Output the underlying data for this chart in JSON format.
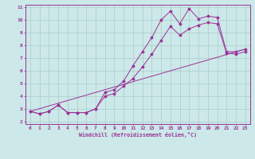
{
  "xlabel": "Windchill (Refroidissement éolien,°C)",
  "bg_color": "#cce8e8",
  "grid_color": "#aacccc",
  "line_color": "#993399",
  "xlim": [
    -0.5,
    23.5
  ],
  "ylim": [
    1.8,
    11.2
  ],
  "xticks": [
    0,
    1,
    2,
    3,
    4,
    5,
    6,
    7,
    8,
    9,
    10,
    11,
    12,
    13,
    14,
    15,
    16,
    17,
    18,
    19,
    20,
    21,
    22,
    23
  ],
  "yticks": [
    2,
    3,
    4,
    5,
    6,
    7,
    8,
    9,
    10,
    11
  ],
  "line1_x": [
    0,
    1,
    2,
    3,
    4,
    5,
    6,
    7,
    8,
    9,
    10,
    11,
    12,
    13,
    14,
    15,
    16,
    17,
    18,
    19,
    20,
    21,
    22,
    23
  ],
  "line1_y": [
    2.8,
    2.6,
    2.8,
    3.3,
    2.7,
    2.7,
    2.7,
    3.0,
    4.3,
    4.5,
    5.2,
    6.4,
    7.5,
    8.6,
    10.0,
    10.7,
    9.7,
    10.9,
    10.1,
    10.3,
    10.2,
    7.5,
    7.5,
    7.7
  ],
  "line2_y": [
    2.8,
    2.6,
    2.8,
    3.3,
    2.7,
    2.7,
    2.7,
    3.0,
    4.0,
    4.2,
    4.8,
    5.4,
    6.3,
    7.3,
    8.4,
    9.5,
    8.8,
    9.3,
    9.6,
    9.8,
    9.7,
    7.4,
    7.3,
    7.5
  ],
  "line3_x": [
    0,
    23
  ],
  "line3_y": [
    2.8,
    7.7
  ]
}
